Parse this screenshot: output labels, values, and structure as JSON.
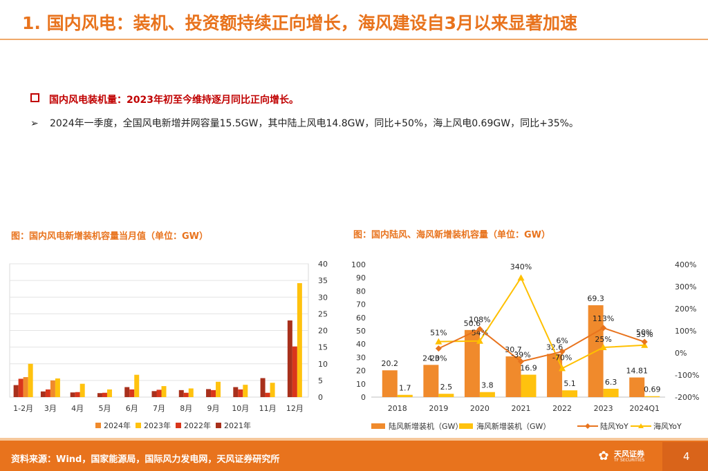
{
  "header": {
    "title": "1. 国内风电：装机、投资额持续正向增长，海风建设自3月以来显著加速"
  },
  "bullets": {
    "main": "国内风电装机量：2023年初至今维持逐月同比正向增长。",
    "sub_marker": "➢",
    "sub": "2024年一季度，全国风电新增并网容量15.5GW，其中陆上风电14.8GW，同比+50%，海上风电0.69GW，同比+35%。"
  },
  "figures": {
    "left_title": "图：国内风电新增装机容量当月值（单位：GW）",
    "right_title": "图：国内陆风、海风新增装机容量（单位：GW）"
  },
  "footer": {
    "source": "资料来源：Wind，国家能源局，国际风力发电网，天风证券研究所",
    "logo_cn": "天风证券",
    "logo_en": "TF SECURITIES",
    "page": "4"
  },
  "colors": {
    "accent": "#E8731D",
    "s2024": "#F08A2C",
    "s2023": "#FFC20E",
    "s2022": "#D9361B",
    "s2021": "#A8301C",
    "onshore_yoy": "#E8731D",
    "offshore_yoy": "#FFC000"
  },
  "chart_data": [
    {
      "type": "bar",
      "categories": [
        "1-2月",
        "3月",
        "4月",
        "5月",
        "6月",
        "7月",
        "8月",
        "9月",
        "10月",
        "11月",
        "12月"
      ],
      "series": [
        {
          "name": "2024年",
          "values": [
            6.0,
            5.0,
            null,
            null,
            null,
            null,
            null,
            null,
            null,
            null,
            null
          ]
        },
        {
          "name": "2023年",
          "values": [
            10.0,
            5.6,
            4.0,
            2.3,
            6.7,
            3.3,
            2.6,
            4.6,
            3.7,
            4.3,
            34.2
          ]
        },
        {
          "name": "2022年",
          "values": [
            5.5,
            2.3,
            1.5,
            1.3,
            2.3,
            2.2,
            1.3,
            2.1,
            2.3,
            1.3,
            15.2
          ]
        },
        {
          "name": "2021年",
          "values": [
            3.6,
            1.7,
            1.4,
            1.2,
            3.0,
            1.8,
            2.1,
            2.4,
            3.0,
            5.7,
            23.0
          ]
        }
      ],
      "y_right": true,
      "ylim": [
        0,
        40
      ],
      "yticks": [
        0,
        5,
        10,
        15,
        20,
        25,
        30,
        35,
        40
      ],
      "grid": true,
      "legend": "bottom"
    },
    {
      "type": "bar",
      "categories": [
        "2018",
        "2019",
        "2020",
        "2021",
        "2022",
        "2023",
        "2024Q1"
      ],
      "series": [
        {
          "name": "陆风新增装机（GW）",
          "values": [
            20.2,
            24.3,
            50.6,
            30.7,
            32.6,
            69.3,
            14.81
          ],
          "labels": [
            "20.2",
            "24.3",
            "50.6",
            "30.7",
            "32.6",
            "69.3",
            "14.81"
          ]
        },
        {
          "name": "海风新增装机（GW）",
          "values": [
            1.7,
            2.5,
            3.8,
            16.9,
            5.1,
            6.3,
            0.69
          ],
          "labels": [
            "1.7",
            "2.5",
            "3.8",
            "16.9",
            "5.1",
            "6.3",
            "0.69"
          ]
        },
        {
          "name": "陆风YoY",
          "type": "line",
          "axis": "right",
          "values": [
            null,
            20,
            108,
            -39,
            6,
            113,
            50
          ],
          "labels": [
            "",
            "20%",
            "108%",
            "-39%",
            "6%",
            "113%",
            "50%"
          ]
        },
        {
          "name": "海风YoY",
          "type": "line",
          "axis": "right",
          "values": [
            null,
            51,
            54,
            340,
            -70,
            25,
            35
          ],
          "labels": [
            "",
            "51%",
            "54%",
            "340%",
            "-70%",
            "25%",
            "35%"
          ]
        }
      ],
      "ylim": [
        0,
        100
      ],
      "yticks": [
        0,
        10,
        20,
        30,
        40,
        50,
        60,
        70,
        80,
        90,
        100
      ],
      "ylim_right": [
        -200,
        400
      ],
      "yticks_right": [
        "-200%",
        "-100%",
        "0%",
        "100%",
        "200%",
        "300%",
        "400%"
      ],
      "grid": false,
      "legend": "bottom"
    }
  ]
}
